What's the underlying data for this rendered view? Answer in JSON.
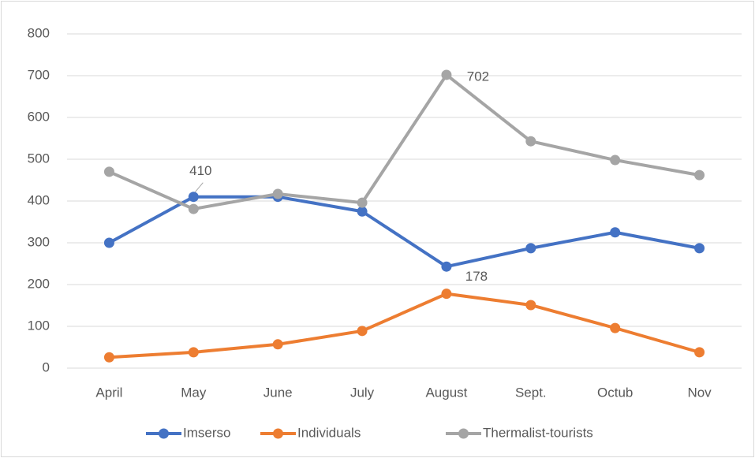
{
  "chart_data": {
    "type": "line",
    "categories": [
      "April",
      "May",
      "June",
      "July",
      "August",
      "Sept.",
      "Octub",
      "Nov"
    ],
    "series": [
      {
        "name": "Imserso",
        "color": "#4472c4",
        "values": [
          300,
          410,
          410,
          375,
          243,
          287,
          325,
          287
        ],
        "data_labels": [
          1
        ]
      },
      {
        "name": "Individuals",
        "color": "#ed7d31",
        "values": [
          26,
          38,
          57,
          89,
          178,
          151,
          96,
          38
        ],
        "data_labels": [
          4
        ]
      },
      {
        "name": "Thermalist-tourists",
        "color": "#a5a5a5",
        "values": [
          470,
          381,
          417,
          396,
          702,
          543,
          498,
          462
        ],
        "data_labels": [
          4
        ]
      }
    ],
    "ylim": [
      0,
      800
    ],
    "yticks": [
      0,
      100,
      200,
      300,
      400,
      500,
      600,
      700,
      800
    ],
    "grid": true,
    "legend": "bottom"
  }
}
